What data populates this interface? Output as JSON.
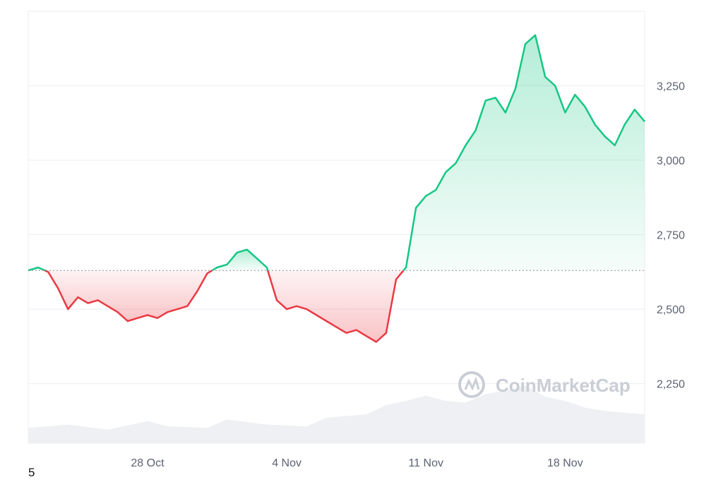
{
  "corner_label": "5",
  "watermark": {
    "text": "CoinMarketCap",
    "icon": "coinmarketcap-logo-icon"
  },
  "colors": {
    "up_line": "#16c784",
    "down_line": "#ea3943",
    "up_fill": "#16c784",
    "down_fill": "#ea3943",
    "grid": "#eceef2",
    "baseline": "#8a8f98",
    "volume": "#eef0f3"
  },
  "chart_data": {
    "type": "area",
    "title": "",
    "xlabel": "",
    "ylabel": "",
    "x_range": [
      "2024-10-22",
      "2024-11-22"
    ],
    "ylim": [
      2050,
      3500
    ],
    "y_ticks": [
      2250,
      2500,
      2750,
      3000,
      3250
    ],
    "y_tick_labels": [
      "2,250",
      "2,500",
      "2,750",
      "3,000",
      "3,250"
    ],
    "x_ticks": [
      "2024-10-28",
      "2024-11-04",
      "2024-11-11",
      "2024-11-18"
    ],
    "x_tick_labels": [
      "28 Oct",
      "4 Nov",
      "11 Nov",
      "18 Nov"
    ],
    "baseline_value": 2630,
    "y_axis_position": "right",
    "grid": true,
    "series": [
      {
        "points": [
          [
            "2024-10-22",
            2630
          ],
          [
            "2024-10-22T12",
            2640
          ],
          [
            "2024-10-23",
            2625
          ],
          [
            "2024-10-23T12",
            2570
          ],
          [
            "2024-10-24",
            2500
          ],
          [
            "2024-10-24T12",
            2540
          ],
          [
            "2024-10-25",
            2520
          ],
          [
            "2024-10-25T12",
            2530
          ],
          [
            "2024-10-26",
            2510
          ],
          [
            "2024-10-26T12",
            2490
          ],
          [
            "2024-10-27",
            2460
          ],
          [
            "2024-10-27T12",
            2470
          ],
          [
            "2024-10-28",
            2480
          ],
          [
            "2024-10-28T12",
            2470
          ],
          [
            "2024-10-29",
            2490
          ],
          [
            "2024-10-29T12",
            2500
          ],
          [
            "2024-10-30",
            2510
          ],
          [
            "2024-10-30T12",
            2560
          ],
          [
            "2024-10-31",
            2620
          ],
          [
            "2024-10-31T12",
            2640
          ],
          [
            "2024-11-01",
            2650
          ],
          [
            "2024-11-01T12",
            2690
          ],
          [
            "2024-11-02",
            2700
          ],
          [
            "2024-11-02T12",
            2670
          ],
          [
            "2024-11-03",
            2640
          ],
          [
            "2024-11-03T12",
            2530
          ],
          [
            "2024-11-04",
            2500
          ],
          [
            "2024-11-04T12",
            2510
          ],
          [
            "2024-11-05",
            2500
          ],
          [
            "2024-11-05T12",
            2480
          ],
          [
            "2024-11-06",
            2460
          ],
          [
            "2024-11-06T12",
            2440
          ],
          [
            "2024-11-07",
            2420
          ],
          [
            "2024-11-07T12",
            2430
          ],
          [
            "2024-11-08",
            2410
          ],
          [
            "2024-11-08T12",
            2390
          ],
          [
            "2024-11-09",
            2420
          ],
          [
            "2024-11-09T12",
            2600
          ],
          [
            "2024-11-10",
            2640
          ],
          [
            "2024-11-10T12",
            2840
          ],
          [
            "2024-11-11",
            2880
          ],
          [
            "2024-11-11T12",
            2900
          ],
          [
            "2024-11-12",
            2960
          ],
          [
            "2024-11-12T12",
            2990
          ],
          [
            "2024-11-13",
            3050
          ],
          [
            "2024-11-13T12",
            3100
          ],
          [
            "2024-11-14",
            3200
          ],
          [
            "2024-11-14T12",
            3210
          ],
          [
            "2024-11-15",
            3160
          ],
          [
            "2024-11-15T12",
            3240
          ],
          [
            "2024-11-16",
            3390
          ],
          [
            "2024-11-16T12",
            3420
          ],
          [
            "2024-11-17",
            3280
          ],
          [
            "2024-11-17T12",
            3250
          ],
          [
            "2024-11-18",
            3160
          ],
          [
            "2024-11-18T12",
            3220
          ],
          [
            "2024-11-19",
            3180
          ],
          [
            "2024-11-19T12",
            3120
          ],
          [
            "2024-11-20",
            3080
          ],
          [
            "2024-11-20T12",
            3050
          ],
          [
            "2024-11-21",
            3120
          ],
          [
            "2024-11-21T12",
            3170
          ],
          [
            "2024-11-22",
            3130
          ]
        ]
      }
    ],
    "volume_scale": [
      0,
      100
    ],
    "volume": {
      "points": [
        [
          "2024-10-22",
          18
        ],
        [
          "2024-10-24",
          22
        ],
        [
          "2024-10-26",
          16
        ],
        [
          "2024-10-28",
          26
        ],
        [
          "2024-10-29",
          20
        ],
        [
          "2024-10-31",
          18
        ],
        [
          "2024-11-01",
          28
        ],
        [
          "2024-11-03",
          22
        ],
        [
          "2024-11-05",
          20
        ],
        [
          "2024-11-06",
          30
        ],
        [
          "2024-11-08",
          34
        ],
        [
          "2024-11-09",
          45
        ],
        [
          "2024-11-10",
          50
        ],
        [
          "2024-11-11",
          56
        ],
        [
          "2024-11-12",
          50
        ],
        [
          "2024-11-13",
          48
        ],
        [
          "2024-11-14",
          58
        ],
        [
          "2024-11-15",
          62
        ],
        [
          "2024-11-16",
          68
        ],
        [
          "2024-11-17",
          55
        ],
        [
          "2024-11-18",
          50
        ],
        [
          "2024-11-19",
          42
        ],
        [
          "2024-11-20",
          38
        ],
        [
          "2024-11-21",
          36
        ],
        [
          "2024-11-22",
          34
        ]
      ]
    }
  }
}
